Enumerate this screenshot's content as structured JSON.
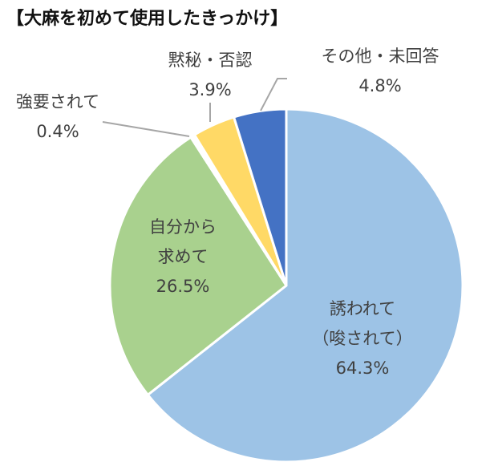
{
  "chart_data": {
    "type": "pie",
    "title": "【大麻を初めて使用したきっかけ】",
    "slices": [
      {
        "label_lines": [
          "誘われて",
          "（唆されて）"
        ],
        "value": 64.3,
        "value_label": "64.3%",
        "color": "#9dc3e6"
      },
      {
        "label_lines": [
          "自分から",
          "求めて"
        ],
        "value": 26.5,
        "value_label": "26.5%",
        "color": "#a9d18e"
      },
      {
        "label_lines": [
          "強要されて"
        ],
        "value": 0.4,
        "value_label": "0.4%",
        "color": "#ffffff"
      },
      {
        "label_lines": [
          "黙秘・否認"
        ],
        "value": 3.9,
        "value_label": "3.9%",
        "color": "#ffd966"
      },
      {
        "label_lines": [
          "その他・未回答"
        ],
        "value": 4.8,
        "value_label": "4.8%",
        "color": "#4472c4"
      }
    ],
    "start": "12 o'clock",
    "direction": "clockwise",
    "legend": "none"
  }
}
